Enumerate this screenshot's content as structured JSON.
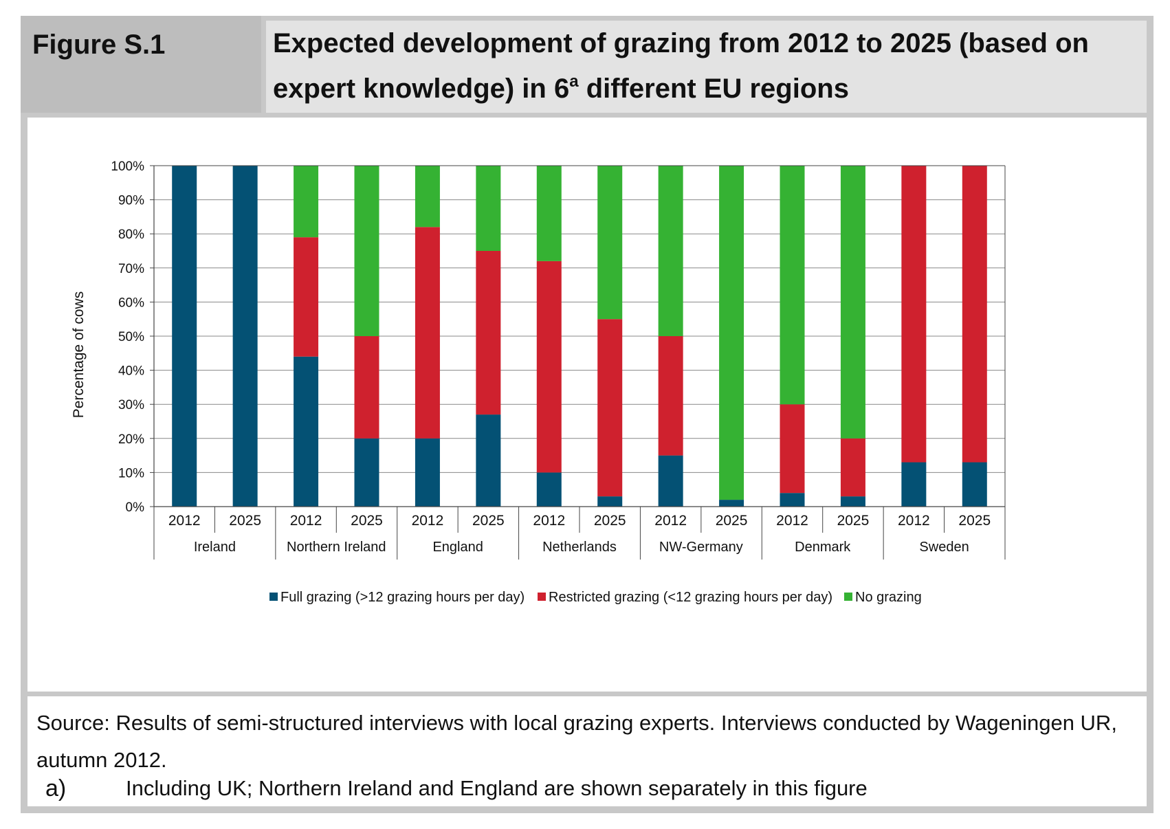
{
  "header": {
    "figure_label": "Figure S.1",
    "title_part1": "Expected development of grazing from 2012 to 2025 (based on expert knowledge) in 6",
    "title_superscript": "a",
    "title_part2": " different EU regions"
  },
  "chart_data": {
    "type": "bar",
    "stacked": true,
    "ylabel": "Percentage of cows",
    "ylim": [
      0,
      100
    ],
    "y_ticks": [
      "0%",
      "10%",
      "20%",
      "30%",
      "40%",
      "50%",
      "60%",
      "70%",
      "80%",
      "90%",
      "100%"
    ],
    "groups": [
      "Ireland",
      "Northern Ireland",
      "England",
      "Netherlands",
      "NW-Germany",
      "Denmark",
      "Sweden"
    ],
    "years": [
      "2012",
      "2025"
    ],
    "categories": [
      "Ireland 2012",
      "Ireland 2025",
      "Northern Ireland 2012",
      "Northern Ireland 2025",
      "England 2012",
      "England 2025",
      "Netherlands 2012",
      "Netherlands 2025",
      "NW-Germany 2012",
      "NW-Germany 2025",
      "Denmark 2012",
      "Denmark 2025",
      "Sweden 2012",
      "Sweden 2025"
    ],
    "series": [
      {
        "name": "Full grazing (>12 grazing hours per day)",
        "color": "#045174",
        "values": [
          100,
          100,
          44,
          20,
          20,
          27,
          10,
          3,
          15,
          2,
          4,
          3,
          13,
          13
        ]
      },
      {
        "name": "Restricted grazing (<12 grazing hours per day)",
        "color": "#cf212e",
        "values": [
          0,
          0,
          35,
          30,
          62,
          48,
          62,
          52,
          35,
          0,
          26,
          17,
          87,
          87
        ]
      },
      {
        "name": "No grazing",
        "color": "#35b233",
        "values": [
          0,
          0,
          21,
          50,
          18,
          25,
          28,
          45,
          50,
          98,
          70,
          80,
          0,
          0
        ]
      }
    ],
    "legend_position": "bottom",
    "grid": true
  },
  "footer": {
    "source": "Source: Results of semi-structured interviews with local grazing experts. Interviews conducted by Wageningen UR, autumn 2012.",
    "note_marker": "a)",
    "note_text": "Including UK; Northern Ireland and England are shown separately in this figure"
  }
}
